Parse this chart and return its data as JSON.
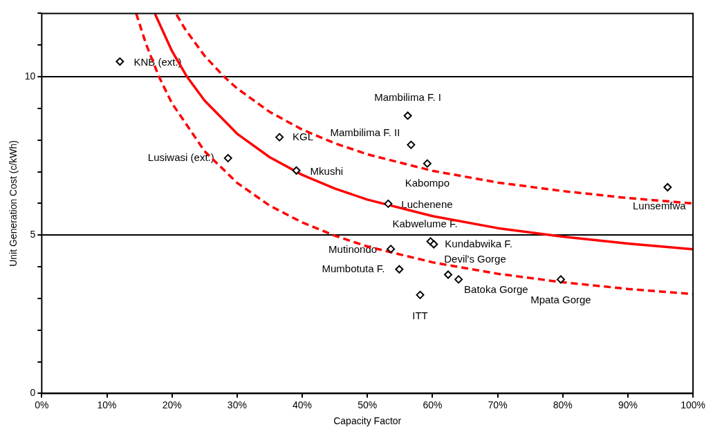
{
  "chart_data": {
    "type": "scatter",
    "xlabel": "Capacity Factor",
    "ylabel": "Unit Generation Cost (c/kWh)",
    "xlim": [
      0,
      100
    ],
    "xticks": [
      {
        "value": 0,
        "label": "0%"
      },
      {
        "value": 10,
        "label": "10%"
      },
      {
        "value": 20,
        "label": "20%"
      },
      {
        "value": 30,
        "label": "30%"
      },
      {
        "value": 40,
        "label": "40%"
      },
      {
        "value": 50,
        "label": "50%"
      },
      {
        "value": 60,
        "label": "60%"
      },
      {
        "value": 70,
        "label": "70%"
      },
      {
        "value": 80,
        "label": "80%"
      },
      {
        "value": 90,
        "label": "90%"
      },
      {
        "value": 100,
        "label": "100%"
      }
    ],
    "ylim": [
      0,
      12
    ],
    "yticks": [
      0,
      {
        "value": 1,
        "label": null
      },
      {
        "value": 2,
        "label": null
      },
      {
        "value": 3,
        "label": null
      },
      {
        "value": 4,
        "label": null
      },
      5,
      {
        "value": 6,
        "label": null
      },
      {
        "value": 7,
        "label": null
      },
      {
        "value": 8,
        "label": null
      },
      {
        "value": 9,
        "label": null
      },
      10,
      {
        "value": 11,
        "label": null
      },
      {
        "value": 12,
        "label": null
      }
    ],
    "grid": "y",
    "series": [
      {
        "type": "scatter",
        "color": "#000000",
        "marker": "diamond",
        "x": [
          12.0,
          36.5,
          28.6,
          39.1,
          56.2,
          56.7,
          59.2,
          53.2,
          59.7,
          60.2,
          53.6,
          54.9,
          62.4,
          64.0,
          58.1,
          79.7,
          96.1
        ],
        "values": [
          10.48,
          8.09,
          7.43,
          7.04,
          8.77,
          7.85,
          7.26,
          5.99,
          4.8,
          4.71,
          4.56,
          3.92,
          3.75,
          3.6,
          3.11,
          3.6,
          6.51
        ]
      },
      {
        "type": "line",
        "color": "#ff0000",
        "marker": "none",
        "line_style": "solid",
        "x": [
          17.4,
          20,
          22.3,
          25,
          30,
          35,
          40,
          45,
          50,
          60,
          70,
          80,
          90,
          100
        ],
        "values": [
          11.98,
          10.81,
          10.0,
          9.25,
          8.2,
          7.46,
          6.9,
          6.47,
          6.12,
          5.6,
          5.22,
          4.95,
          4.73,
          4.55
        ]
      },
      {
        "type": "line",
        "color": "#ff0000",
        "marker": "none",
        "line_style": "dashed",
        "x": [
          20.7,
          22,
          25,
          28,
          30,
          35,
          40,
          45,
          50,
          60,
          70,
          80,
          90,
          100
        ],
        "values": [
          11.96,
          11.51,
          10.66,
          10.0,
          9.63,
          8.89,
          8.33,
          7.9,
          7.55,
          7.03,
          6.66,
          6.39,
          6.17,
          6.0
        ]
      },
      {
        "type": "line",
        "color": "#ff0000",
        "marker": "none",
        "line_style": "dashed",
        "x": [
          14.5,
          16,
          18,
          20,
          25,
          30,
          35,
          40,
          45,
          50,
          60,
          70,
          80,
          90,
          100
        ],
        "values": [
          12.0,
          11.04,
          10.0,
          9.16,
          7.65,
          6.65,
          5.93,
          5.4,
          4.98,
          4.64,
          4.14,
          3.78,
          3.51,
          3.3,
          3.14
        ]
      }
    ],
    "annotations": [
      {
        "text": "KNB (ext.)",
        "x": 12.0,
        "y": 10.48
      },
      {
        "text": "KGL",
        "x": 36.5,
        "y": 8.09
      },
      {
        "text": "Lusiwasi (ext.)",
        "x": 28.6,
        "y": 7.43
      },
      {
        "text": "Mkushi",
        "x": 39.1,
        "y": 7.04
      },
      {
        "text": "Mambilima F. I",
        "x": 56.2,
        "y": 8.77
      },
      {
        "text": "Mambilima F. II",
        "x": 56.7,
        "y": 7.85
      },
      {
        "text": "Kabompo",
        "x": 59.2,
        "y": 7.26
      },
      {
        "text": "Luchenene",
        "x": 53.2,
        "y": 5.99
      },
      {
        "text": "Kabwelume F.",
        "x": 59.7,
        "y": 4.8
      },
      {
        "text": "Kundabwika F.",
        "x": 60.2,
        "y": 4.71
      },
      {
        "text": "Mutinondo",
        "x": 53.6,
        "y": 4.56
      },
      {
        "text": "Mumbotuta F.",
        "x": 54.9,
        "y": 3.92
      },
      {
        "text": "Devil's Gorge",
        "x": 62.4,
        "y": 3.75
      },
      {
        "text": "Batoka Gorge",
        "x": 64.0,
        "y": 3.6
      },
      {
        "text": "ITT",
        "x": 58.1,
        "y": 3.11
      },
      {
        "text": "Mpata Gorge",
        "x": 79.7,
        "y": 3.6
      },
      {
        "text": "Lunsemfwa",
        "x": 96.1,
        "y": 6.51
      }
    ]
  }
}
